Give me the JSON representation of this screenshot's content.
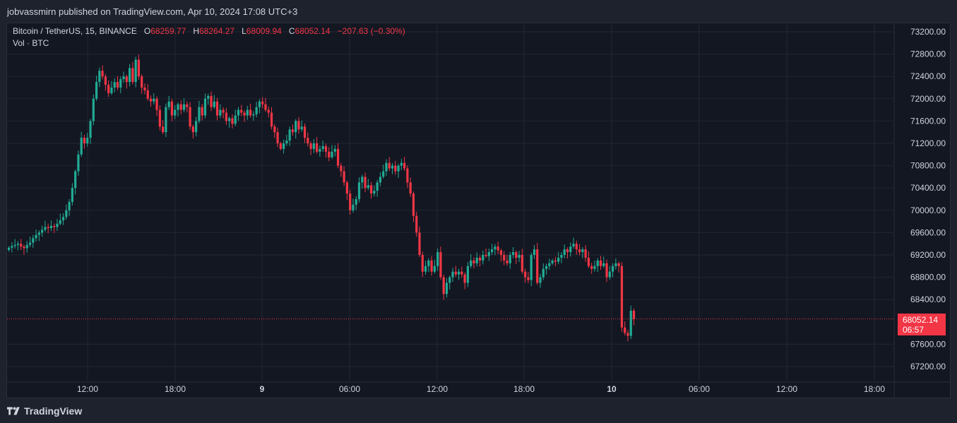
{
  "header": {
    "publisher_text": "jobvassmirn published on TradingView.com, Apr 10, 2024 17:08 UTC+3"
  },
  "legend": {
    "symbol": "Bitcoin / TetherUS, 15, BINANCE",
    "o_label": "O",
    "o_value": "68259.77",
    "h_label": "H",
    "h_value": "68264.27",
    "l_label": "L",
    "l_value": "68009.94",
    "c_label": "C",
    "c_value": "68052.14",
    "change": "−207.63 (−0.30%)",
    "volume_label": "Vol · BTC"
  },
  "price_tag": {
    "price": "68052.14",
    "countdown": "06:57"
  },
  "footer": {
    "brand": "TradingView"
  },
  "colors": {
    "up": "#22ab94",
    "down": "#f23645",
    "background": "#131722",
    "grid": "#232733",
    "text": "#d1d4dc"
  },
  "chart_data": {
    "type": "candlestick",
    "interval": "15",
    "grid": true,
    "y_axis": {
      "range": [
        67000,
        73400
      ],
      "ticks": [
        73200,
        72800,
        72400,
        72000,
        71600,
        71200,
        70800,
        70400,
        70000,
        69600,
        69200,
        68800,
        68400,
        67600,
        67200
      ],
      "tick_labels": [
        "73200.00",
        "72800.00",
        "72400.00",
        "72000.00",
        "71600.00",
        "71200.00",
        "70800.00",
        "70400.00",
        "70000.00",
        "69600.00",
        "69200.00",
        "68800.00",
        "68400.00",
        "67600.00",
        "67200.00"
      ]
    },
    "x_axis": {
      "ticks": [
        {
          "label": "12:00",
          "bold": false
        },
        {
          "label": "18:00",
          "bold": false
        },
        {
          "label": "9",
          "bold": true
        },
        {
          "label": "06:00",
          "bold": false
        },
        {
          "label": "12:00",
          "bold": false
        },
        {
          "label": "18:00",
          "bold": false
        },
        {
          "label": "10",
          "bold": true
        },
        {
          "label": "06:00",
          "bold": false
        },
        {
          "label": "12:00",
          "bold": false
        },
        {
          "label": "18:00",
          "bold": false
        }
      ]
    },
    "last_price": 68052.14,
    "close_series": [
      69330,
      69360,
      69380,
      69400,
      69350,
      69320,
      69380,
      69420,
      69500,
      69560,
      69600,
      69650,
      69700,
      69680,
      69720,
      69700,
      69760,
      69820,
      69880,
      70000,
      70150,
      70400,
      70700,
      71000,
      71300,
      71200,
      71300,
      71600,
      72000,
      72300,
      72500,
      72400,
      72250,
      72100,
      72200,
      72300,
      72200,
      72350,
      72400,
      72300,
      72550,
      72300,
      72700,
      72400,
      72200,
      72150,
      72000,
      71950,
      72000,
      71800,
      71500,
      71400,
      71850,
      71950,
      71700,
      71800,
      71900,
      71800,
      71900,
      71850,
      71500,
      71400,
      71600,
      71850,
      71700,
      72000,
      72050,
      71850,
      71950,
      71700,
      71800,
      71750,
      71600,
      71650,
      71550,
      71700,
      71800,
      71750,
      71700,
      71800,
      71700,
      71720,
      71850,
      71950,
      71900,
      71800,
      71750,
      71500,
      71400,
      71200,
      71100,
      71200,
      71250,
      71450,
      71400,
      71600,
      71450,
      71500,
      71300,
      71200,
      71100,
      71200,
      71050,
      71100,
      71150,
      71050,
      70950,
      71050,
      71100,
      70800,
      70700,
      70500,
      70300,
      70000,
      70100,
      70200,
      70500,
      70600,
      70400,
      70450,
      70300,
      70350,
      70500,
      70600,
      70700,
      70850,
      70750,
      70800,
      70700,
      70800,
      70850,
      70750,
      70500,
      70300,
      69900,
      69600,
      69200,
      68900,
      69000,
      69100,
      68900,
      69000,
      69250,
      68800,
      68500,
      68700,
      68800,
      68900,
      68850,
      68900,
      68850,
      68700,
      69000,
      69100,
      69050,
      69150,
      69100,
      69200,
      69180,
      69250,
      69300,
      69350,
      69280,
      69200,
      69100,
      69050,
      69200,
      69250,
      69150,
      69200,
      68900,
      68800,
      68750,
      69200,
      69300,
      68700,
      68800,
      68950,
      69000,
      69050,
      69100,
      69080,
      69150,
      69200,
      69300,
      69250,
      69350,
      69400,
      69300,
      69250,
      69300,
      69150,
      69000,
      68950,
      69000,
      69100,
      69000,
      69050,
      68800,
      68900,
      69000,
      69050,
      69000,
      67900,
      67800,
      67750,
      68200,
      68052
    ]
  }
}
